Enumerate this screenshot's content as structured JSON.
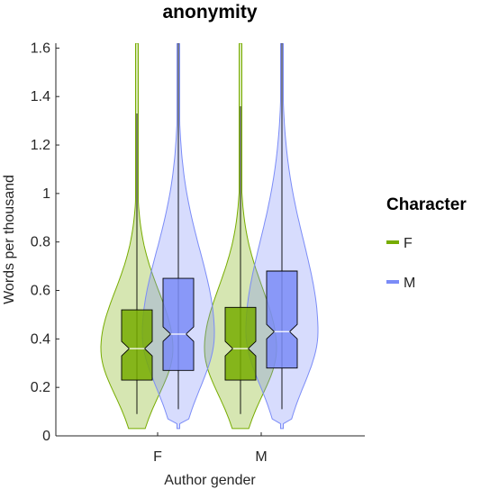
{
  "chart_data": {
    "type": "violin",
    "title": "anonymity",
    "xlabel": "Author gender",
    "ylabel": "Words per thousand",
    "ylim": [
      0,
      1.62
    ],
    "yticks": [
      0,
      0.2,
      0.4,
      0.6,
      0.8,
      1,
      1.2,
      1.4,
      1.6
    ],
    "ytick_labels": [
      "0",
      "0.2",
      "0.4",
      "0.6",
      "0.8",
      "1",
      "1.2",
      "1.4",
      "1.6"
    ],
    "categories": [
      "F",
      "M"
    ],
    "grid": false,
    "legend": {
      "title": "Character",
      "position": "right"
    },
    "series": [
      {
        "name": "F",
        "color": "#77ac00",
        "stats": [
          {
            "category": "F",
            "whisker_low": 0.09,
            "q1": 0.23,
            "median": 0.36,
            "q3": 0.52,
            "whisker_high": 1.33,
            "notch_low": 0.33,
            "notch_high": 0.39,
            "max": 1.62
          },
          {
            "category": "M",
            "whisker_low": 0.09,
            "q1": 0.23,
            "median": 0.36,
            "q3": 0.53,
            "whisker_high": 1.36,
            "notch_low": 0.33,
            "notch_high": 0.39,
            "max": 1.62
          }
        ]
      },
      {
        "name": "M",
        "color": "#7b8cf7",
        "stats": [
          {
            "category": "F",
            "whisker_low": 0.11,
            "q1": 0.27,
            "median": 0.42,
            "q3": 0.65,
            "whisker_high": 1.62,
            "notch_low": 0.39,
            "notch_high": 0.45,
            "max": 1.62
          },
          {
            "category": "M",
            "whisker_low": 0.11,
            "q1": 0.28,
            "median": 0.43,
            "q3": 0.68,
            "whisker_high": 1.62,
            "notch_low": 0.4,
            "notch_high": 0.46,
            "max": 1.62
          }
        ]
      }
    ]
  }
}
